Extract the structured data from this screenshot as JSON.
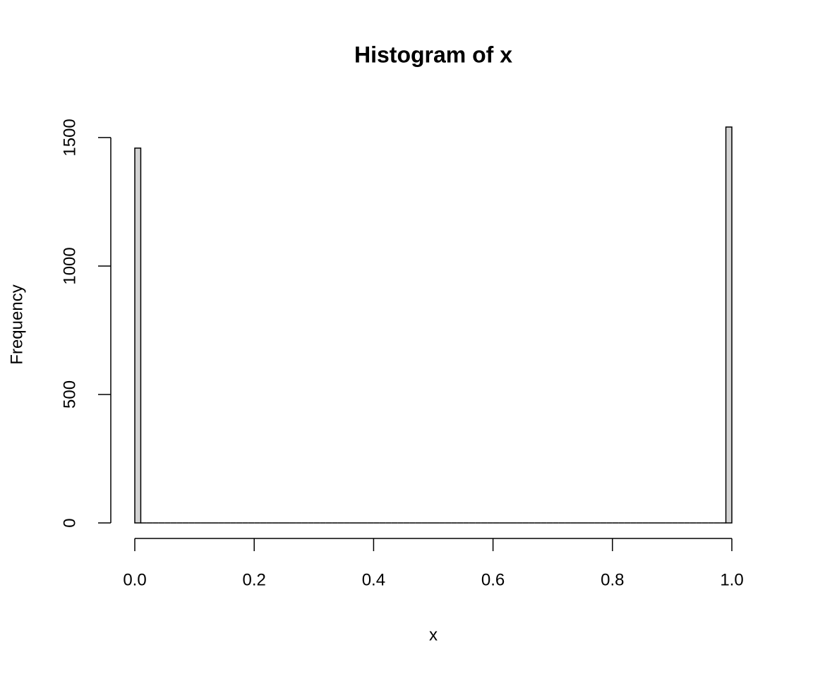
{
  "chart_data": {
    "type": "histogram",
    "title": "Histogram of x",
    "x_label": "x",
    "y_label": "Frequency",
    "bins": [
      0,
      0.01,
      0.02,
      0.03,
      0.04,
      0.05,
      0.06,
      0.07,
      0.08,
      0.09,
      0.1,
      0.11,
      0.12,
      0.13,
      0.14,
      0.15,
      0.16,
      0.17,
      0.18,
      0.19,
      0.2,
      0.21,
      0.22,
      0.23,
      0.24,
      0.25,
      0.26,
      0.27,
      0.28,
      0.29,
      0.3,
      0.31,
      0.32,
      0.33,
      0.34,
      0.35,
      0.36,
      0.37,
      0.38,
      0.39,
      0.4,
      0.41,
      0.42,
      0.43,
      0.44,
      0.45,
      0.46,
      0.47,
      0.48,
      0.49,
      0.5,
      0.51,
      0.52,
      0.53,
      0.54,
      0.55,
      0.56,
      0.57,
      0.58,
      0.59,
      0.6,
      0.61,
      0.62,
      0.63,
      0.64,
      0.65,
      0.66,
      0.67,
      0.68,
      0.69,
      0.7,
      0.71,
      0.72,
      0.73,
      0.74,
      0.75,
      0.76,
      0.77,
      0.78,
      0.79,
      0.8,
      0.81,
      0.82,
      0.83,
      0.84,
      0.85,
      0.86,
      0.87,
      0.88,
      0.89,
      0.9,
      0.91,
      0.92,
      0.93,
      0.94,
      0.95,
      0.96,
      0.97,
      0.98,
      0.99,
      1
    ],
    "counts": [
      1459,
      0,
      0,
      0,
      0,
      0,
      0,
      0,
      0,
      0,
      0,
      0,
      0,
      0,
      0,
      0,
      0,
      0,
      0,
      0,
      0,
      0,
      0,
      0,
      0,
      0,
      0,
      0,
      0,
      0,
      0,
      0,
      0,
      0,
      0,
      0,
      0,
      0,
      0,
      0,
      0,
      0,
      0,
      0,
      0,
      0,
      0,
      0,
      0,
      0,
      0,
      0,
      0,
      0,
      0,
      0,
      0,
      0,
      0,
      0,
      0,
      0,
      0,
      0,
      0,
      0,
      0,
      0,
      0,
      0,
      0,
      0,
      0,
      0,
      0,
      0,
      0,
      0,
      0,
      0,
      0,
      0,
      0,
      0,
      0,
      0,
      0,
      0,
      0,
      0,
      0,
      0,
      0,
      0,
      0,
      0,
      0,
      0,
      0,
      1541
    ],
    "color": "#d3d3d3",
    "xlim": [
      0,
      1
    ],
    "xticks": [
      {
        "value": 0,
        "label": "0.0"
      },
      0.2,
      0.4,
      0.6,
      0.8,
      {
        "value": 1,
        "label": "1.0"
      }
    ],
    "ylim": [
      0,
      1541
    ],
    "yticks": [
      0,
      500,
      1000,
      1500
    ]
  }
}
